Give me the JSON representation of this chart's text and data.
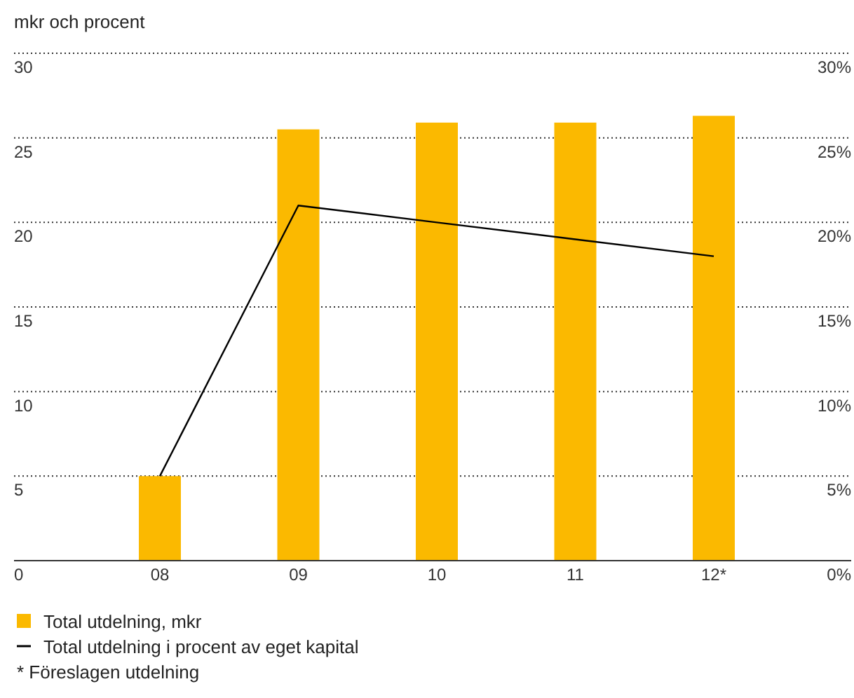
{
  "chart_data": {
    "type": "bar",
    "ylabel": "mkr och procent",
    "categories": [
      "08",
      "09",
      "10",
      "11",
      "12*"
    ],
    "series": [
      {
        "name": "Total utdelning, mkr",
        "color": "#fbb900",
        "values": [
          5.0,
          25.5,
          25.9,
          25.9,
          26.3
        ]
      },
      {
        "name": "Total utdelning i procent av eget kapital",
        "type": "line",
        "color": "#000000",
        "values": [
          5,
          21,
          20,
          19,
          18
        ]
      }
    ],
    "ylim": [
      0,
      30
    ],
    "yticks": [
      0,
      5,
      10,
      15,
      20,
      25,
      30
    ],
    "y2lim": [
      0,
      30
    ],
    "y2ticks": [
      {
        "value": 0,
        "label": "0%"
      },
      {
        "value": 5,
        "label": "5%"
      },
      {
        "value": 10,
        "label": "10%"
      },
      {
        "value": 15,
        "label": "15%"
      },
      {
        "value": 20,
        "label": "20%"
      },
      {
        "value": 25,
        "label": "25%"
      },
      {
        "value": 30,
        "label": "30%"
      }
    ],
    "grid": "y",
    "legend": "bottom",
    "marker": "none",
    "line_style": "solid",
    "annotations": [
      "* Föreslagen utdelning"
    ]
  }
}
